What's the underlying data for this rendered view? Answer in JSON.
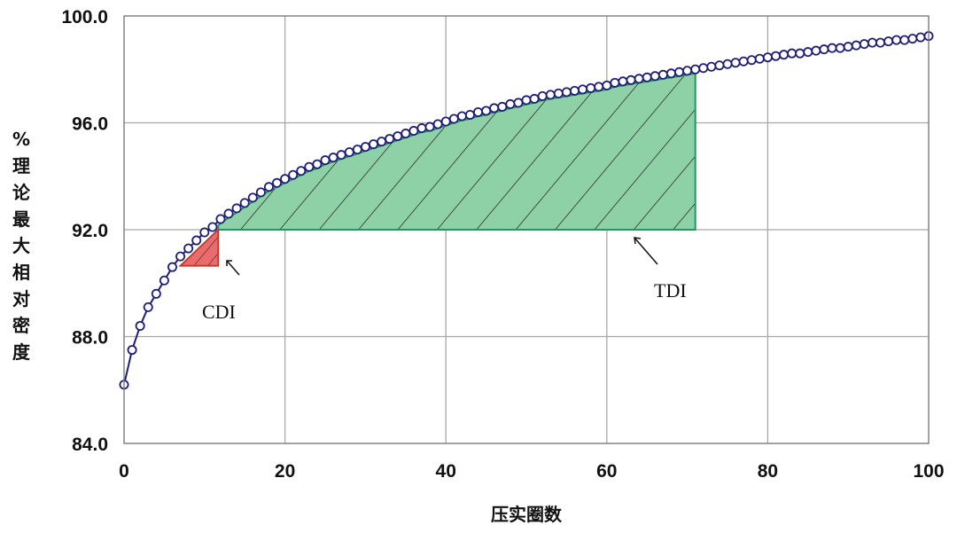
{
  "chart_data": {
    "type": "line",
    "title": "",
    "xlabel": "压实圈数",
    "ylabel": "%理论最大相对密度",
    "xlim": [
      0,
      100
    ],
    "ylim": [
      84.0,
      100.0
    ],
    "x_ticks": [
      "0",
      "20",
      "40",
      "60",
      "80",
      "100"
    ],
    "y_ticks": [
      "84.0",
      "88.0",
      "92.0",
      "96.0",
      "100.0"
    ],
    "grid": true,
    "series": [
      {
        "x": [
          0,
          1,
          2,
          3,
          4,
          5,
          6,
          7,
          8,
          9,
          10,
          11,
          12,
          13,
          14,
          15,
          16,
          17,
          18,
          19,
          20,
          21,
          22,
          23,
          24,
          25,
          26,
          27,
          28,
          29,
          30,
          31,
          32,
          33,
          34,
          35,
          36,
          37,
          38,
          39,
          40,
          41,
          42,
          43,
          44,
          45,
          46,
          47,
          48,
          49,
          50,
          51,
          52,
          53,
          54,
          55,
          56,
          57,
          58,
          59,
          60,
          61,
          62,
          63,
          64,
          65,
          66,
          67,
          68,
          69,
          70,
          71,
          72,
          73,
          74,
          75,
          76,
          77,
          78,
          79,
          80,
          81,
          82,
          83,
          84,
          85,
          86,
          87,
          88,
          89,
          90,
          91,
          92,
          93,
          94,
          95,
          96,
          97,
          98,
          99,
          100
        ],
        "y": [
          86.2,
          87.5,
          88.4,
          89.1,
          89.6,
          90.1,
          90.6,
          91.0,
          91.3,
          91.6,
          91.9,
          92.1,
          92.4,
          92.6,
          92.8,
          93.0,
          93.2,
          93.4,
          93.6,
          93.75,
          93.9,
          94.05,
          94.2,
          94.35,
          94.45,
          94.6,
          94.7,
          94.8,
          94.9,
          95.0,
          95.1,
          95.2,
          95.3,
          95.4,
          95.5,
          95.6,
          95.7,
          95.8,
          95.85,
          95.95,
          96.05,
          96.15,
          96.25,
          96.3,
          96.4,
          96.45,
          96.55,
          96.6,
          96.7,
          96.75,
          96.85,
          96.9,
          97.0,
          97.05,
          97.1,
          97.15,
          97.2,
          97.25,
          97.3,
          97.35,
          97.4,
          97.5,
          97.55,
          97.6,
          97.65,
          97.7,
          97.75,
          97.8,
          97.85,
          97.9,
          97.95,
          98.0,
          98.05,
          98.1,
          98.15,
          98.2,
          98.25,
          98.3,
          98.35,
          98.4,
          98.45,
          98.5,
          98.55,
          98.6,
          98.6,
          98.65,
          98.7,
          98.75,
          98.8,
          98.8,
          98.85,
          98.9,
          98.95,
          99.0,
          99.0,
          99.05,
          99.1,
          99.1,
          99.15,
          99.2,
          99.25
        ]
      }
    ],
    "regions": [
      {
        "label": "CDI",
        "type": "triangle",
        "x_start": 7.0,
        "x_end": 11.7,
        "y_base": 90.65,
        "y_top": 92.0,
        "color": "#e96b6b"
      },
      {
        "label": "TDI",
        "type": "curve-fill",
        "x_start": 11.7,
        "x_end": 71.0,
        "y_base": 92.0,
        "color": "#8fd1a6"
      }
    ],
    "colors": {
      "marker": "#1e1e78",
      "line": "#1e1e78",
      "grid": "#a8a8a8",
      "frame": "#7a7a7a",
      "tdi_edge": "#1a9a5c",
      "cdi_edge": "#c0392b"
    }
  }
}
